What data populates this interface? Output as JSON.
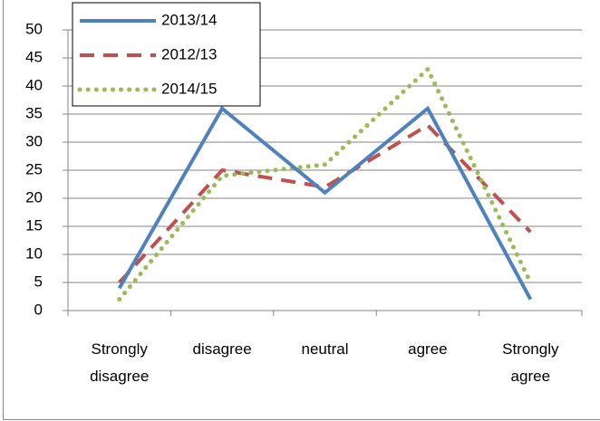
{
  "chart_data": {
    "type": "line",
    "categories": [
      "Strongly disagree",
      "disagree",
      "neutral",
      "agree",
      "Strongly agree"
    ],
    "series": [
      {
        "name": "2013/14",
        "color": "#4f81bd",
        "dash": "solid",
        "values": [
          4,
          36,
          21,
          36,
          2
        ]
      },
      {
        "name": "2012/13",
        "color": "#c0504d",
        "dash": "dashed",
        "values": [
          5,
          25,
          22,
          33,
          14
        ]
      },
      {
        "name": "2014/15",
        "color": "#9bbb59",
        "dash": "dotted",
        "values": [
          2,
          24,
          26,
          43,
          5
        ]
      }
    ],
    "ylim": [
      0,
      50
    ],
    "yticks": [
      0,
      5,
      10,
      15,
      20,
      25,
      30,
      35,
      40,
      45,
      50
    ],
    "grid": true,
    "legend": "top-left"
  }
}
